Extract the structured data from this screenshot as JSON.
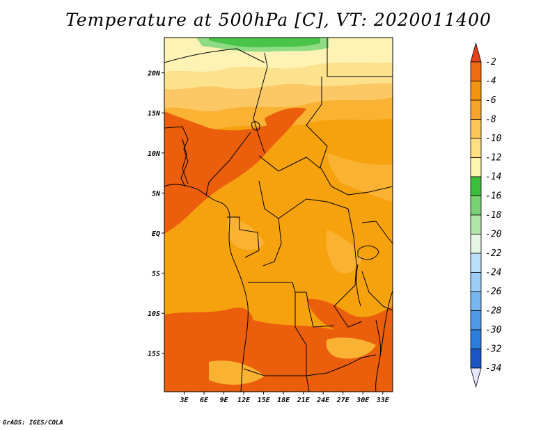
{
  "title": "Temperature at 500hPa [C], VT: 2020011400",
  "footer": "GrADS: IGES/COLA",
  "map": {
    "lon_range": [
      0,
      34.5
    ],
    "lat_range": [
      -19.8,
      24.4
    ],
    "lat_ticks": [
      {
        "value": 20,
        "label": "20N"
      },
      {
        "value": 15,
        "label": "15N"
      },
      {
        "value": 10,
        "label": "10N"
      },
      {
        "value": 5,
        "label": "5N"
      },
      {
        "value": 0,
        "label": "EQ"
      },
      {
        "value": -5,
        "label": "5S"
      },
      {
        "value": -10,
        "label": "10S"
      },
      {
        "value": -15,
        "label": "15S"
      }
    ],
    "lon_ticks": [
      {
        "value": 3,
        "label": "3E"
      },
      {
        "value": 6,
        "label": "6E"
      },
      {
        "value": 9,
        "label": "9E"
      },
      {
        "value": 12,
        "label": "12E"
      },
      {
        "value": 15,
        "label": "15E"
      },
      {
        "value": 18,
        "label": "18E"
      },
      {
        "value": 21,
        "label": "21E"
      },
      {
        "value": 24,
        "label": "24E"
      },
      {
        "value": 27,
        "label": "27E"
      },
      {
        "value": 30,
        "label": "30E"
      },
      {
        "value": 33,
        "label": "33E"
      }
    ]
  },
  "colorbar": {
    "labels": [
      "-2",
      "-4",
      "-6",
      "-8",
      "-10",
      "-12",
      "-14",
      "-16",
      "-18",
      "-20",
      "-22",
      "-24",
      "-26",
      "-28",
      "-30",
      "-32",
      "-34"
    ],
    "top_arrow_color": "#e0431b",
    "bottom_arrow_color": "#e6e6ff",
    "colors": [
      "#f06a10",
      "#f49410",
      "#f7a52a",
      "#fbc65a",
      "#fde084",
      "#fef6b0",
      "#3cbe3c",
      "#78d274",
      "#b0e6a6",
      "#e6f7e6",
      "#bde0fa",
      "#9ccdf7",
      "#78b6f0",
      "#4f9be8",
      "#2c7ddc",
      "#1e55c4",
      "#0f1e82"
    ]
  },
  "colors": {
    "warmest": "#ea5e0c",
    "warm": "#f6a20e",
    "mid": "#fab233",
    "cool": "#fcc866",
    "cooler": "#fde28e",
    "coolest": "#fef3b5",
    "green": "#49c449",
    "lightgreen": "#90dc84"
  }
}
